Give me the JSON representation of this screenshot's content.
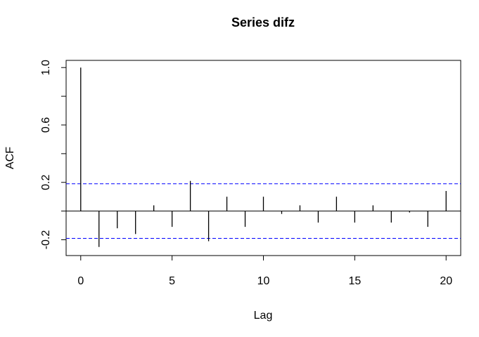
{
  "chart_data": {
    "type": "stem",
    "title": "Series  difz",
    "xlabel": "Lag",
    "ylabel": "ACF",
    "x": [
      0,
      1,
      2,
      3,
      4,
      5,
      6,
      7,
      8,
      9,
      10,
      11,
      12,
      13,
      14,
      15,
      16,
      17,
      18,
      19,
      20
    ],
    "values": [
      1.0,
      -0.25,
      -0.12,
      -0.16,
      0.04,
      -0.11,
      0.21,
      -0.21,
      0.1,
      -0.11,
      0.1,
      -0.02,
      0.04,
      -0.08,
      0.1,
      -0.08,
      0.04,
      -0.08,
      -0.01,
      -0.11,
      0.14
    ],
    "color": "#000000",
    "conf_lines": [
      0.19,
      -0.19
    ],
    "conf_color": "#0000ff",
    "xlim": [
      -0.8,
      20.8
    ],
    "xticks": [
      0,
      5,
      10,
      15,
      20
    ],
    "ylim": [
      -0.31,
      1.05
    ],
    "yticks": [
      {
        "value": -0.2,
        "label": "-0.2"
      },
      {
        "value": 0.2,
        "label": "0.2"
      },
      {
        "value": 0.6,
        "label": "0.6"
      },
      {
        "value": 1.0,
        "label": "1.0"
      }
    ],
    "yminor_ticks": [
      0,
      0.4,
      0.8
    ]
  }
}
